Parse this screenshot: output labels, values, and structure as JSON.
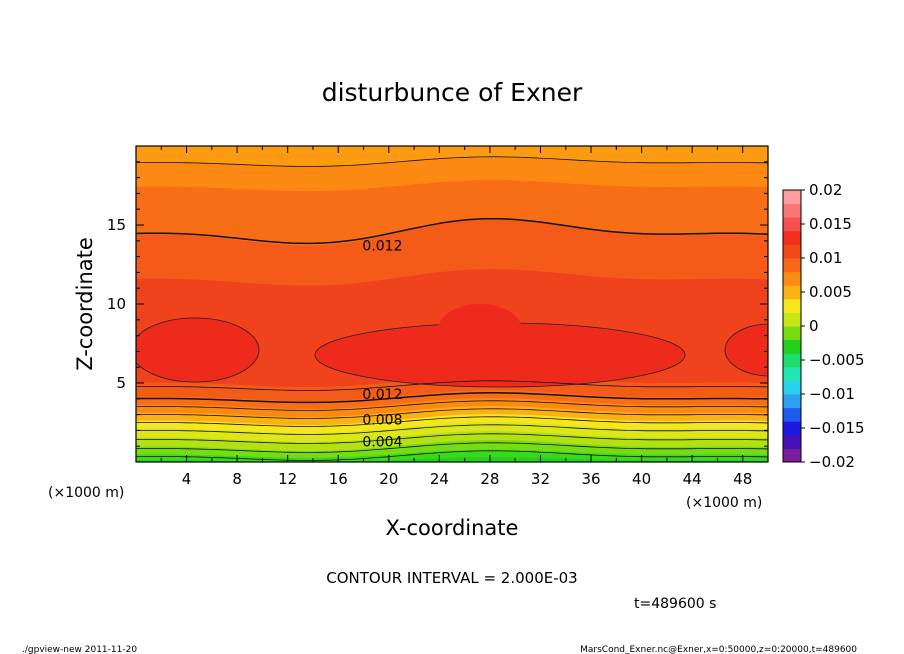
{
  "chart_data": {
    "type": "contour",
    "title": "disturbunce of Exner",
    "xlabel": "X-coordinate",
    "ylabel": "Z-coordinate",
    "x_unit_label": "(×1000 m)",
    "xlim": [
      0,
      50
    ],
    "ylim": [
      0,
      20
    ],
    "x_ticks": [
      4,
      8,
      12,
      16,
      20,
      24,
      28,
      32,
      36,
      40,
      44,
      48
    ],
    "y_ticks": [
      5,
      10,
      15
    ],
    "contour_interval_text": "CONTOUR INTERVAL = 2.000E-03",
    "time_text": "t=489600 s",
    "contour_labels": [
      {
        "text": "0.012",
        "x": 19.5,
        "z": 13.7
      },
      {
        "text": "0.012",
        "x": 19.5,
        "z": 4.3
      },
      {
        "text": "0.008",
        "x": 19.5,
        "z": 2.7
      },
      {
        "text": "0.004",
        "x": 19.5,
        "z": 1.3
      }
    ],
    "colorbar": {
      "ticks": [
        "0.02",
        "0.015",
        "0.01",
        "0.005",
        "0",
        "−0.005",
        "−0.01",
        "−0.015",
        "−0.02"
      ],
      "levels": [
        -0.02,
        0.02
      ],
      "colors": [
        "#7a1fa0",
        "#4a10b8",
        "#1c1ae0",
        "#1e5cf0",
        "#2ea0f0",
        "#28d2ee",
        "#22e6b4",
        "#1edc6e",
        "#20d21e",
        "#78dc14",
        "#c8e614",
        "#f6e61e",
        "#fcb014",
        "#fc8c12",
        "#f86818",
        "#f44a1a",
        "#f0301e",
        "#f45050",
        "#f87878",
        "#fc9c9c"
      ]
    }
  },
  "footer": {
    "left": "./gpview-new   2011-11-20",
    "right": "MarsCond_Exner.nc@Exner,x=0:50000,z=0:20000,t=489600"
  },
  "colors": {
    "axis": "#000000",
    "background": "#ffffff"
  }
}
